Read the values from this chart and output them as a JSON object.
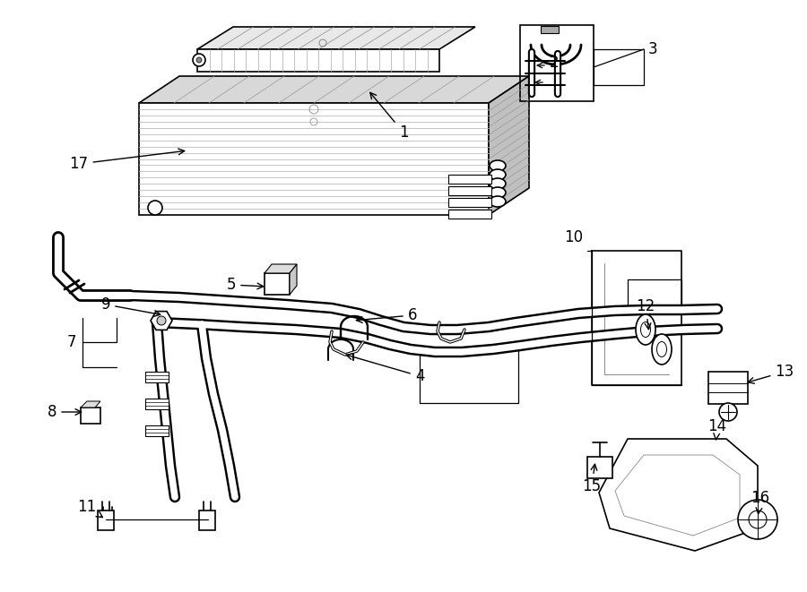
{
  "bg_color": "#ffffff",
  "lc": "#000000",
  "lw": 1.2,
  "fig_w": 9.0,
  "fig_h": 6.61
}
